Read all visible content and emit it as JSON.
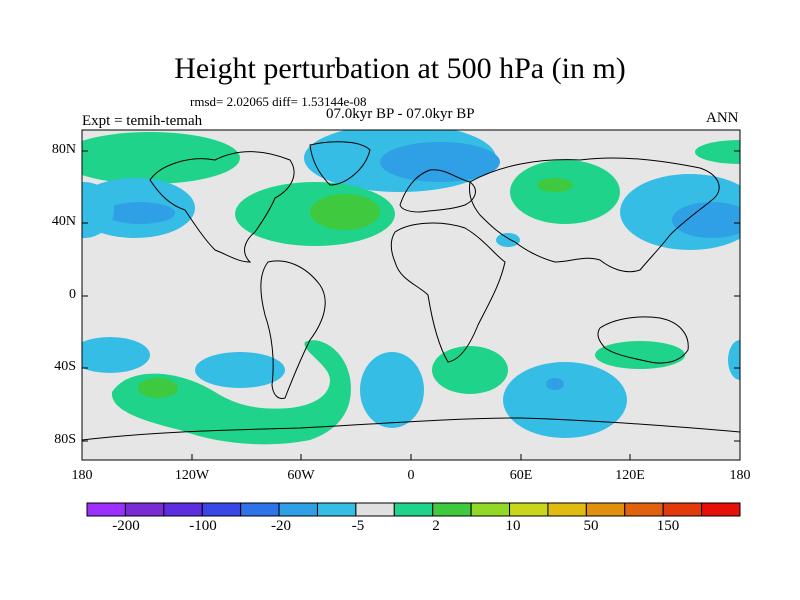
{
  "title": "Height perturbation at 500 hPa (in m)",
  "stats_line": "rmsd= 2.02065 diff= 1.53144e-08",
  "expt_label": "Expt = temih-temah",
  "period_label": "07.0kyr BP - 07.0kyr BP",
  "season_label": "ANN",
  "axes": {
    "y_ticks": [
      "80N",
      "40N",
      "0",
      "40S",
      "80S"
    ],
    "x_ticks": [
      "180",
      "120W",
      "60W",
      "0",
      "60E",
      "120E",
      "180"
    ]
  },
  "colorbar": {
    "colors": [
      "#9b30ff",
      "#7a2bd6",
      "#5c2ee0",
      "#3a47e6",
      "#2e74e8",
      "#2f9fe6",
      "#35bde6",
      "#e0e0e0",
      "#1fd48a",
      "#3ec93e",
      "#92d927",
      "#cad61a",
      "#e0bc12",
      "#e0900e",
      "#e0620c",
      "#e33a0b",
      "#e61008"
    ],
    "labels": [
      "-200",
      "-100",
      "-20",
      "-5",
      "2",
      "10",
      "50",
      "150"
    ]
  },
  "field_colors": {
    "ocean_gray": "#e6e6e6",
    "neg_light": "#35bde6",
    "neg_mid": "#2f9fe6",
    "pos_light": "#1fd48a",
    "pos_mid": "#3ec93e"
  }
}
